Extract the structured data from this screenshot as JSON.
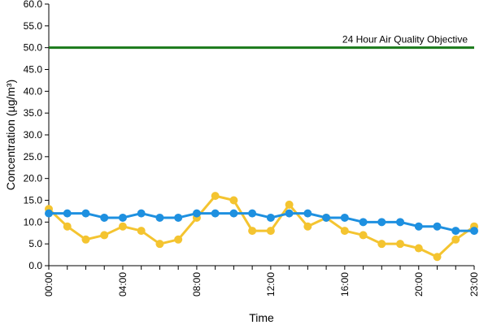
{
  "chart_data": {
    "type": "line",
    "title": "",
    "xlabel": "Time",
    "ylabel": "Concentration (µg/m³)",
    "ylim": [
      0,
      60
    ],
    "yticks": [
      "0.0",
      "5.0",
      "10.0",
      "15.0",
      "20.0",
      "25.0",
      "30.0",
      "35.0",
      "40.0",
      "45.0",
      "50.0",
      "55.0",
      "60.0"
    ],
    "x": [
      "00:00",
      "01:00",
      "02:00",
      "03:00",
      "04:00",
      "05:00",
      "06:00",
      "07:00",
      "08:00",
      "09:00",
      "10:00",
      "11:00",
      "12:00",
      "13:00",
      "14:00",
      "15:00",
      "16:00",
      "17:00",
      "18:00",
      "19:00",
      "20:00",
      "21:00",
      "22:00",
      "23:00"
    ],
    "xtick_labels": [
      "00:00",
      "04:00",
      "08:00",
      "12:00",
      "16:00",
      "20:00",
      "23:00"
    ],
    "series": [
      {
        "color": "#F4C430",
        "values": [
          13,
          9,
          6,
          7,
          9,
          8,
          5,
          6,
          11,
          16,
          15,
          8,
          8,
          14,
          9,
          11,
          8,
          7,
          5,
          5,
          4,
          2,
          6,
          9
        ]
      },
      {
        "color": "#1E90E0",
        "values": [
          12,
          12,
          12,
          11,
          11,
          12,
          11,
          11,
          12,
          12,
          12,
          12,
          11,
          12,
          12,
          11,
          11,
          10,
          10,
          10,
          9,
          9,
          8,
          8
        ]
      }
    ],
    "reference_line": {
      "label": "24 Hour Air Quality Objective",
      "value": 50,
      "color": "#1A7A1A"
    },
    "grid": false,
    "legend": "none"
  }
}
